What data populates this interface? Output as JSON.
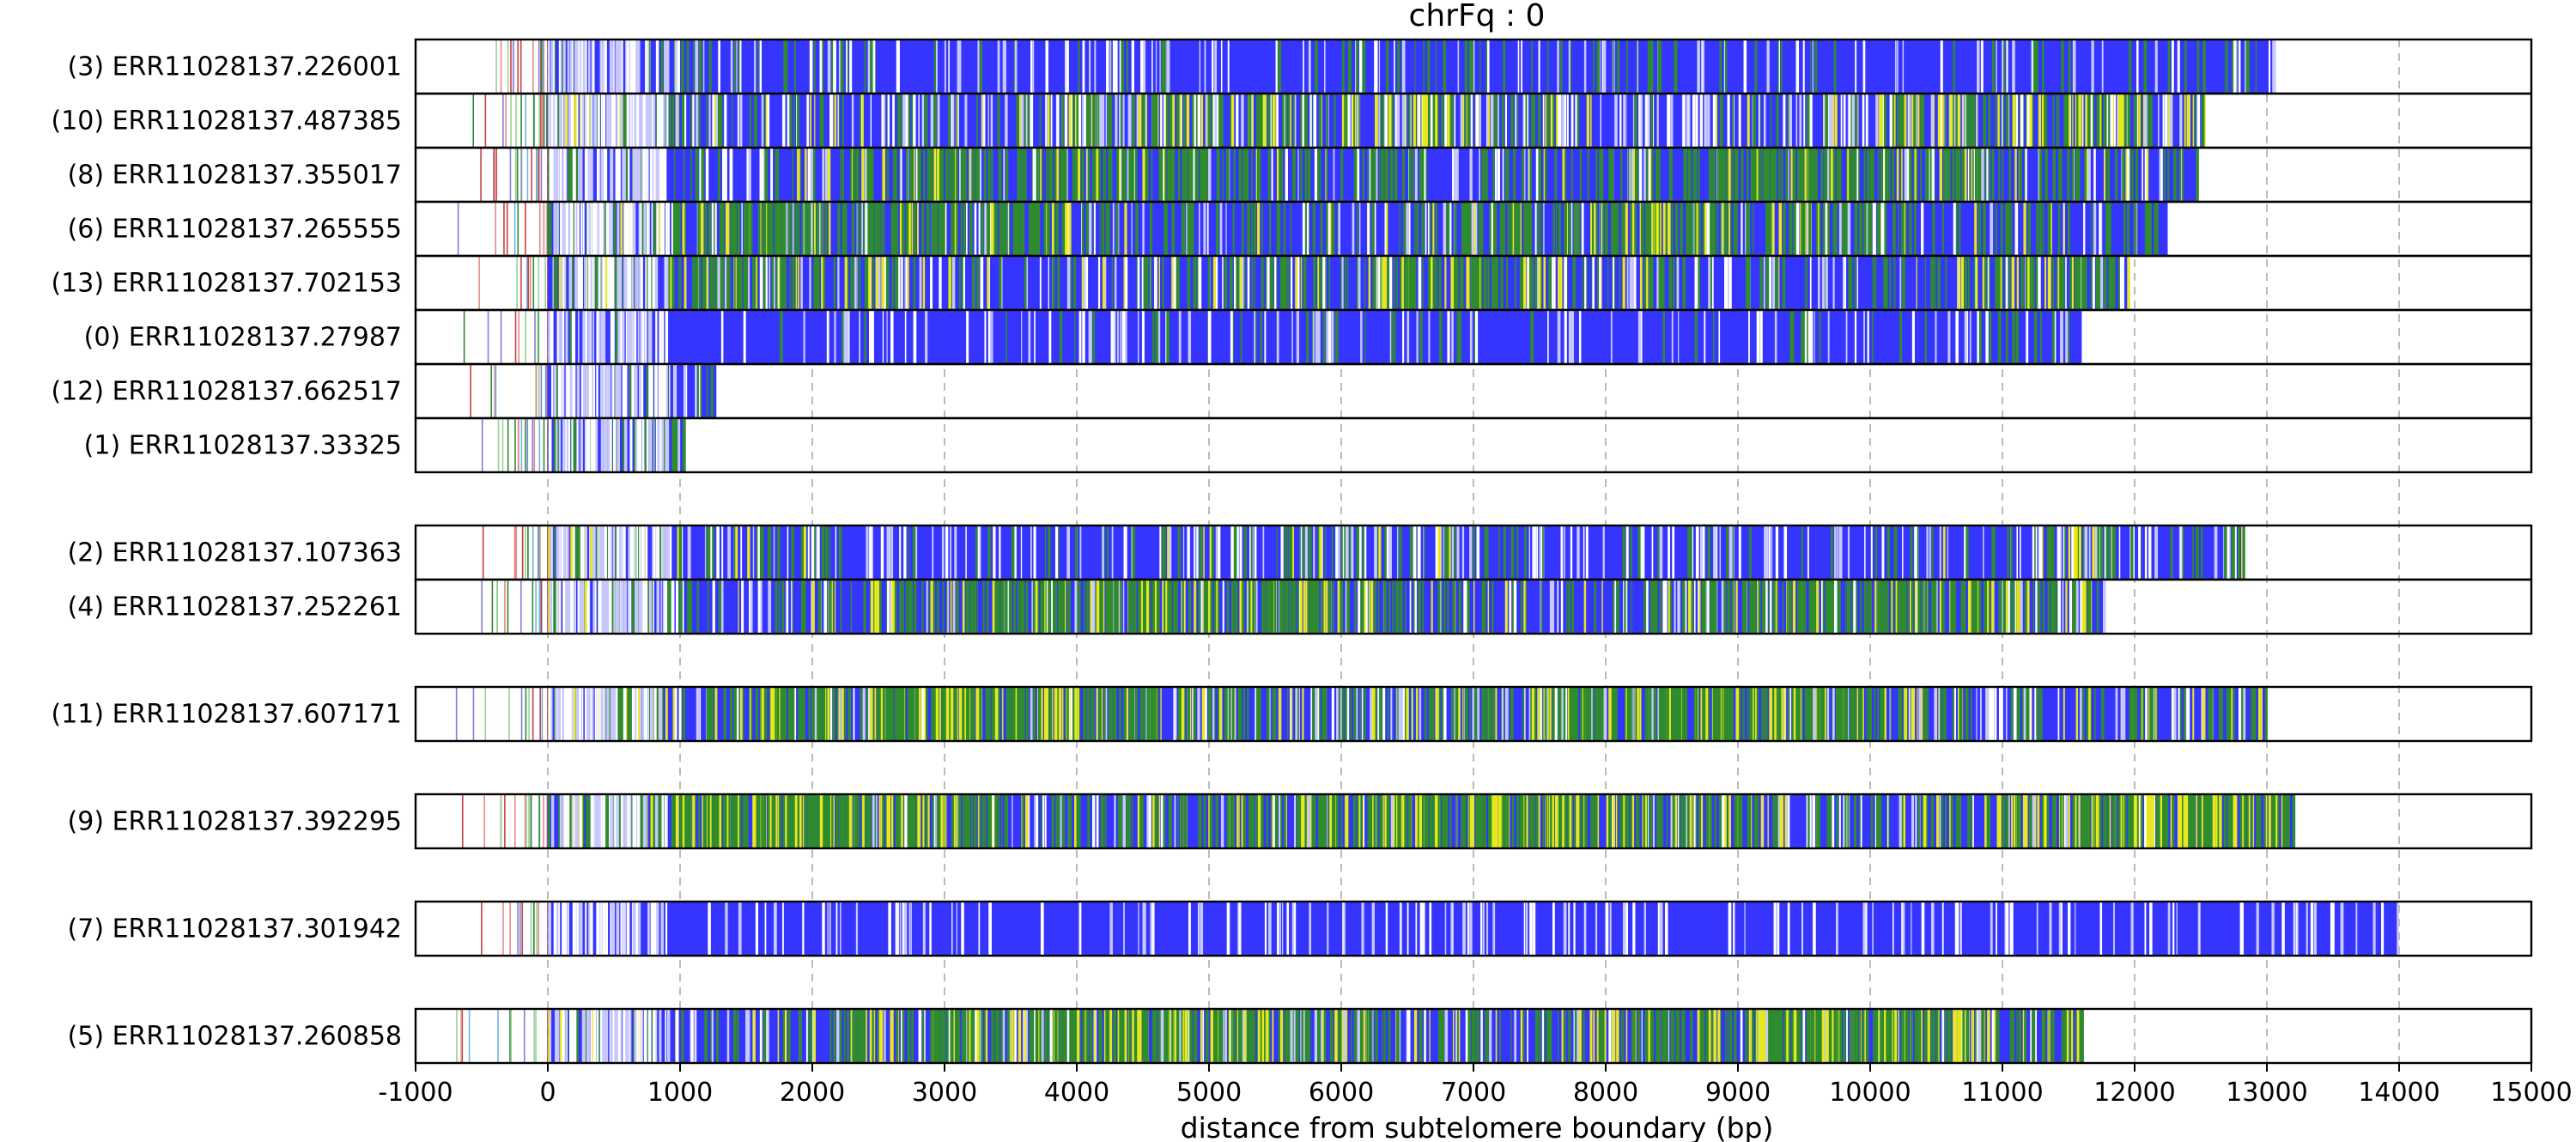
{
  "chart_data": {
    "type": "read-composition-plot",
    "title": "chrFq : 0",
    "xlabel": "distance from subtelomere boundary (bp)",
    "xlim": [
      -1000,
      15000
    ],
    "xticks": [
      -1000,
      0,
      1000,
      2000,
      3000,
      4000,
      5000,
      6000,
      7000,
      8000,
      9000,
      10000,
      11000,
      12000,
      13000,
      14000,
      15000
    ],
    "xtick_labels": [
      "-1000",
      "0",
      "1000",
      "2000",
      "3000",
      "4000",
      "5000",
      "6000",
      "7000",
      "8000",
      "9000",
      "10000",
      "11000",
      "12000",
      "13000",
      "14000",
      "15000"
    ],
    "grid": "vertical dashed at x ticks",
    "colors": {
      "canonical": "#3535ff",
      "variant_green": "#2e8b2e",
      "variant_yellow": "#e8e820",
      "light_blue": "#c8c8ff",
      "axis": "#000000",
      "grid": "#bbbbbb"
    },
    "clusters": [
      {
        "reads": [
          {
            "label": "(3) ERR11028137.226001",
            "end": 13050,
            "green_density": 0.08,
            "yellow_density": 0.0,
            "white_density": 0.1
          },
          {
            "label": "(10) ERR11028137.487385",
            "end": 12530,
            "green_density": 0.2,
            "yellow_density": 0.08,
            "white_density": 0.22
          },
          {
            "label": "(8) ERR11028137.355017",
            "end": 12470,
            "green_density": 0.35,
            "yellow_density": 0.04,
            "white_density": 0.1
          },
          {
            "label": "(6) ERR11028137.265555",
            "end": 12250,
            "green_density": 0.38,
            "yellow_density": 0.06,
            "white_density": 0.08
          },
          {
            "label": "(13) ERR11028137.702153",
            "end": 11950,
            "green_density": 0.25,
            "yellow_density": 0.06,
            "white_density": 0.12
          },
          {
            "label": "(0) ERR11028137.27987",
            "end": 11600,
            "green_density": 0.04,
            "yellow_density": 0.0,
            "white_density": 0.1
          },
          {
            "label": "(12) ERR11028137.662517",
            "end": 1280,
            "green_density": 0.2,
            "yellow_density": 0.0,
            "white_density": 0.18
          },
          {
            "label": "(1) ERR11028137.33325",
            "end": 1030,
            "green_density": 0.35,
            "yellow_density": 0.0,
            "white_density": 0.15
          }
        ]
      },
      {
        "reads": [
          {
            "label": "(2) ERR11028137.107363",
            "end": 12820,
            "green_density": 0.12,
            "yellow_density": 0.02,
            "white_density": 0.15
          },
          {
            "label": "(4) ERR11028137.252261",
            "end": 11770,
            "green_density": 0.4,
            "yellow_density": 0.08,
            "white_density": 0.1
          }
        ]
      },
      {
        "reads": [
          {
            "label": "(11) ERR11028137.607171",
            "end": 12990,
            "green_density": 0.45,
            "yellow_density": 0.15,
            "white_density": 0.15
          }
        ]
      },
      {
        "reads": [
          {
            "label": "(9) ERR11028137.392295",
            "end": 13200,
            "green_density": 0.5,
            "yellow_density": 0.18,
            "white_density": 0.1
          }
        ]
      },
      {
        "reads": [
          {
            "label": "(7) ERR11028137.301942",
            "end": 13990,
            "green_density": 0.0,
            "yellow_density": 0.0,
            "white_density": 0.12
          }
        ]
      },
      {
        "reads": [
          {
            "label": "(5) ERR11028137.260858",
            "end": 11600,
            "green_density": 0.45,
            "yellow_density": 0.15,
            "white_density": 0.12
          }
        ]
      }
    ]
  }
}
